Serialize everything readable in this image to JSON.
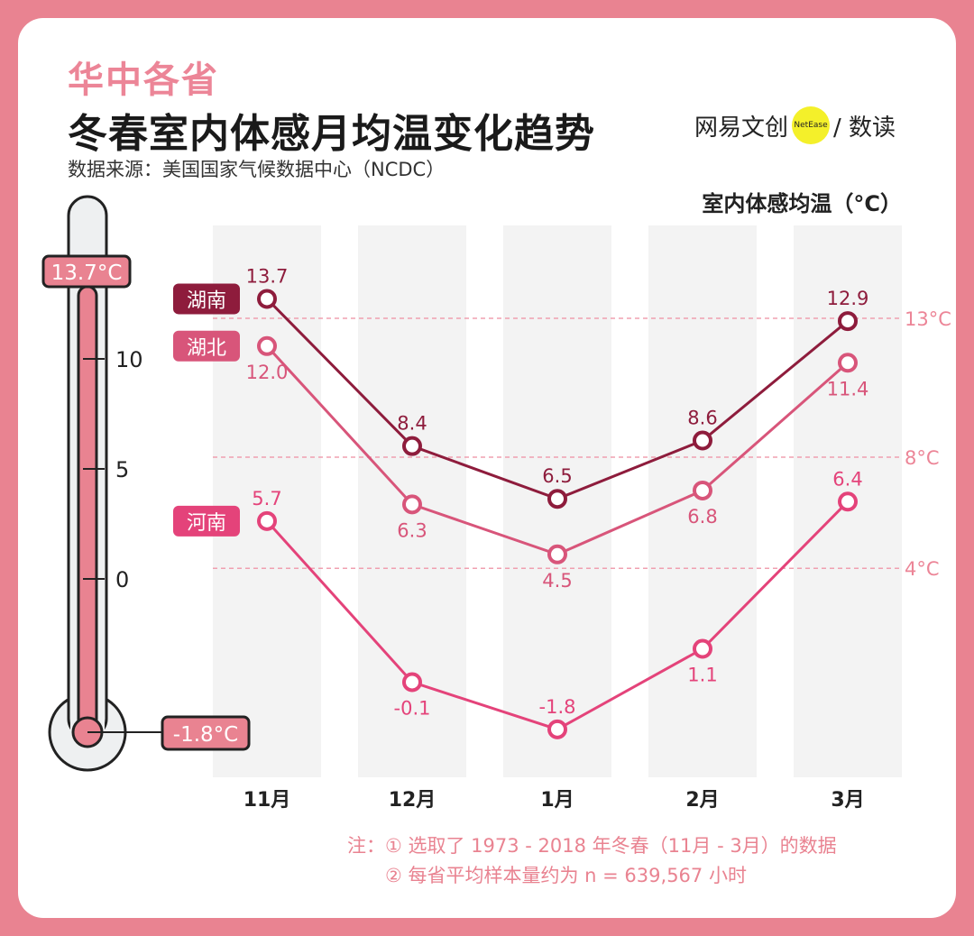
{
  "header": {
    "kicker": "华中各省",
    "title": "冬春室内体感月均温变化趋势",
    "source": "数据来源：美国国家气候数据中心（NCDC）",
    "logo_left": "网易文创",
    "logo_badge": "NetEase",
    "logo_right": "/ 数读"
  },
  "thermometer": {
    "max_label": "13.7°C",
    "min_label": "-1.8°C",
    "max": 13.7,
    "min": -1.8,
    "ticks": [
      10,
      5,
      0
    ]
  },
  "notes": [
    "注：① 选取了 1973 - 2018 年冬春（11月 - 3月）的数据",
    "② 每省平均样本量约为 n = 639,567 小时"
  ],
  "chart_data": {
    "type": "line",
    "ylabel": "室内体感均温（°C）",
    "categories": [
      "11月",
      "12月",
      "1月",
      "2月",
      "3月"
    ],
    "reference_lines": [
      {
        "value": 13,
        "label": "13°C"
      },
      {
        "value": 8,
        "label": "8°C"
      },
      {
        "value": 4,
        "label": "4°C"
      }
    ],
    "series": [
      {
        "name": "湖南",
        "color": "#8e1c3c",
        "values": [
          13.7,
          8.4,
          6.5,
          8.6,
          12.9
        ],
        "labels": [
          "13.7",
          "8.4",
          "6.5",
          "8.6",
          "12.9"
        ],
        "label_pos": [
          "above",
          "above",
          "above",
          "above",
          "above"
        ]
      },
      {
        "name": "湖北",
        "color": "#d8557a",
        "values": [
          12.0,
          6.3,
          4.5,
          6.8,
          11.4
        ],
        "labels": [
          "12.0",
          "6.3",
          "4.5",
          "6.8",
          "11.4"
        ],
        "label_pos": [
          "below",
          "below",
          "below",
          "below",
          "below"
        ]
      },
      {
        "name": "河南",
        "color": "#e4437a",
        "values": [
          5.7,
          -0.1,
          -1.8,
          1.1,
          6.4
        ],
        "labels": [
          "5.7",
          "-0.1",
          "-1.8",
          "1.1",
          "6.4"
        ],
        "label_pos": [
          "above",
          "below",
          "above",
          "below",
          "above"
        ]
      }
    ]
  }
}
